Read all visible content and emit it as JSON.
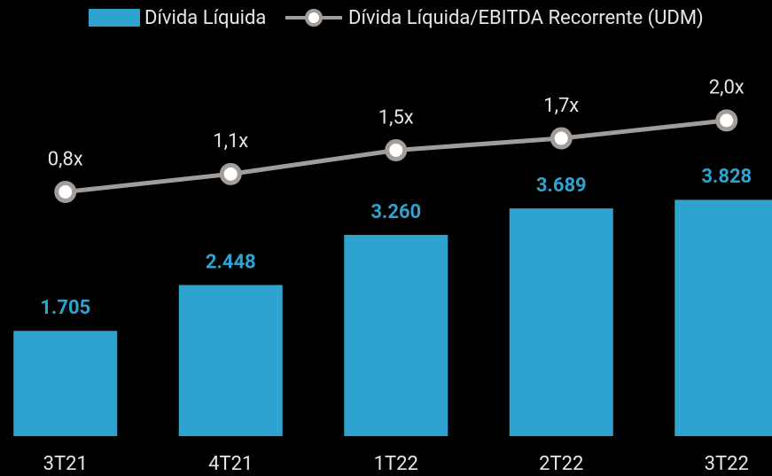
{
  "chart_data": {
    "type": "bar",
    "categories": [
      "3T21",
      "4T21",
      "1T22",
      "2T22",
      "3T22"
    ],
    "series": [
      {
        "name": "Dívida Líquida",
        "type": "bar",
        "color": "#2ea3d0",
        "values": [
          1705,
          2448,
          3260,
          3689,
          3828
        ],
        "value_labels": [
          "1.705",
          "2.448",
          "3.260",
          "3.689",
          "3.828"
        ]
      },
      {
        "name": "Dívida Líquida/EBITDA Recorrente (UDM)",
        "type": "line",
        "axis": "y2",
        "color": "#a39d99",
        "values": [
          0.8,
          1.1,
          1.5,
          1.7,
          2.0
        ],
        "value_labels": [
          "0,8x",
          "1,1x",
          "1,5x",
          "1,7x",
          "2,0x"
        ]
      }
    ],
    "ylim": [
      0,
      5500
    ],
    "y2lim": [
      -3.3,
      2.4
    ],
    "legend": "top"
  }
}
